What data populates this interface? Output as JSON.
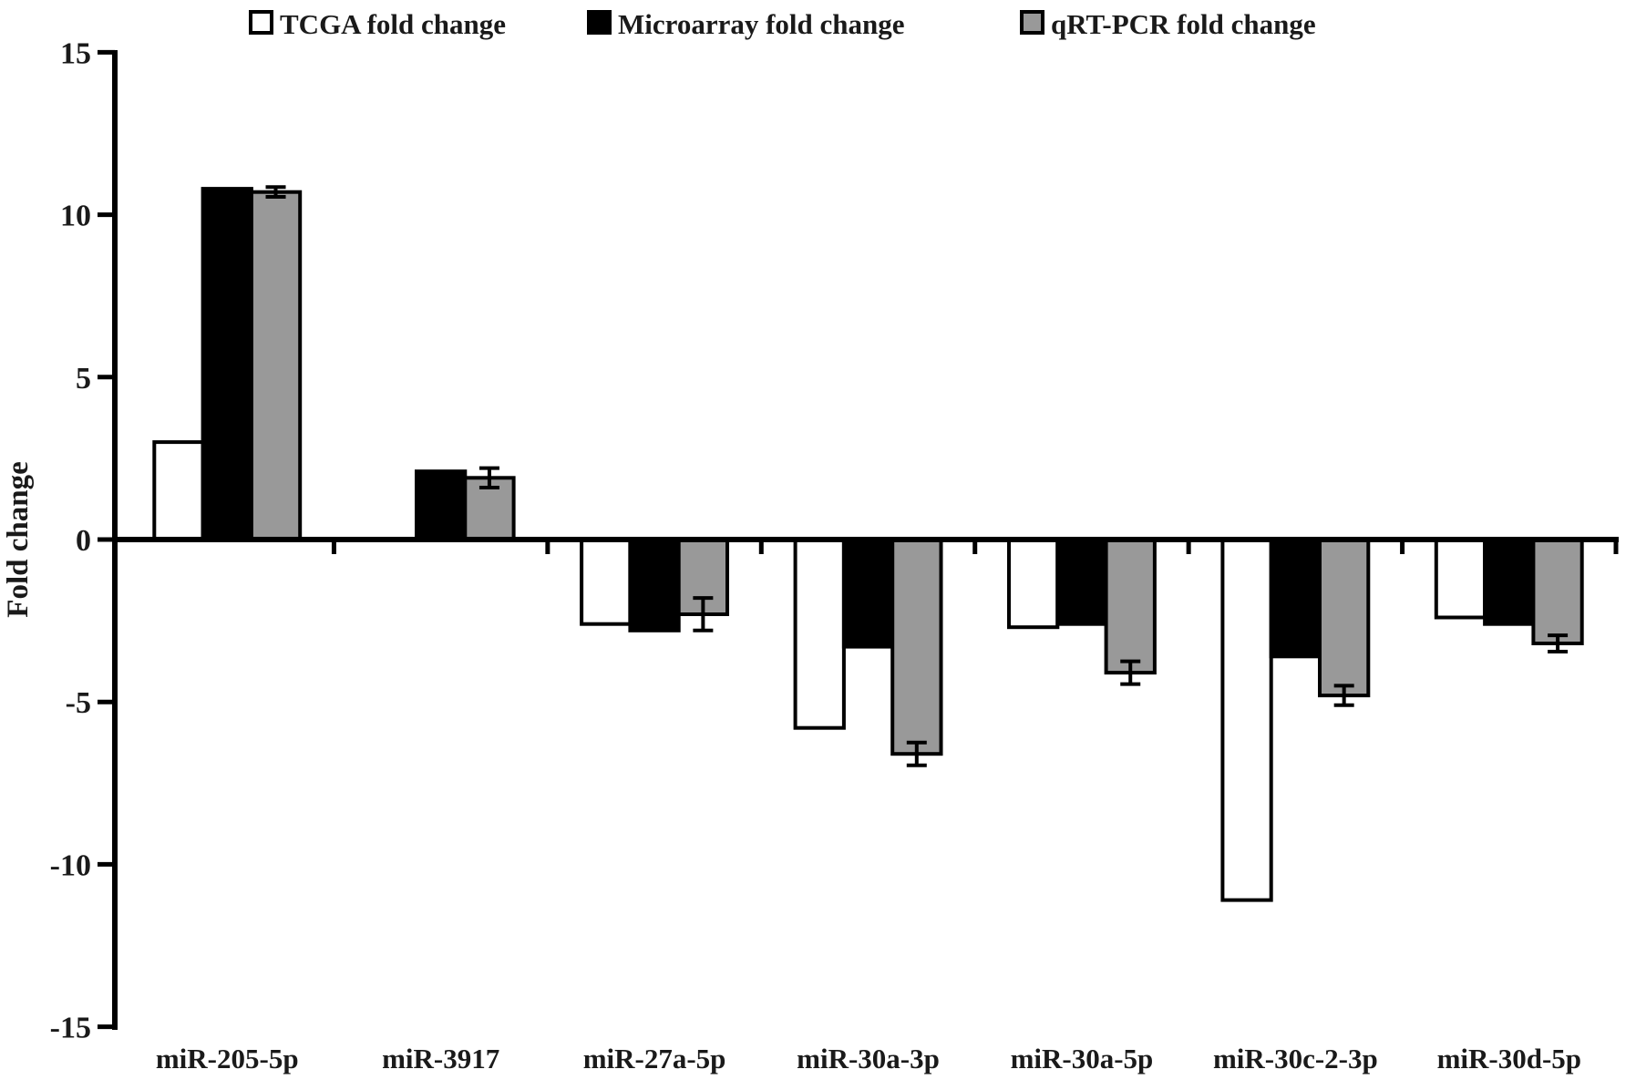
{
  "figure": {
    "background": "#ffffff",
    "axis_color": "#000000"
  },
  "chart_data": {
    "type": "bar",
    "title": "",
    "xlabel": "",
    "ylabel": "Fold change",
    "ylim": [
      -15,
      15
    ],
    "y_ticks": [
      15,
      10,
      5,
      0,
      -5,
      -10,
      -15
    ],
    "grid": false,
    "legend_position": "top",
    "bar_border_color": "#000000",
    "error_bar_color": "#000000",
    "categories": [
      "miR-205-5p",
      "miR-3917",
      "miR-27a-5p",
      "miR-30a-3p",
      "miR-30a-5p",
      "miR-30c-2-3p",
      "miR-30d-5p"
    ],
    "series": [
      {
        "name": "TCGA fold change",
        "color": "#ffffff",
        "values": [
          3.0,
          null,
          -2.6,
          -5.8,
          -2.7,
          -11.1,
          -2.4
        ]
      },
      {
        "name": "Microarray fold change",
        "color": "#000000",
        "values": [
          10.8,
          2.1,
          -2.8,
          -3.3,
          -2.6,
          -3.6,
          -2.6
        ]
      },
      {
        "name": "qRT-PCR fold change",
        "color": "#999999",
        "values": [
          10.7,
          1.9,
          -2.3,
          -6.6,
          -4.1,
          -4.8,
          -3.2
        ],
        "errors": [
          0.15,
          0.3,
          0.5,
          0.35,
          0.35,
          0.3,
          0.25
        ]
      }
    ]
  }
}
